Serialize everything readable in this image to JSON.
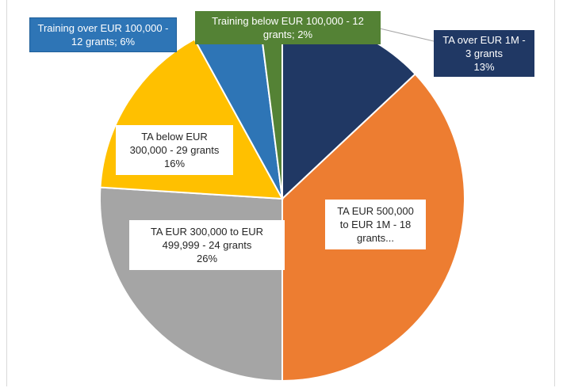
{
  "chart_data": {
    "type": "pie",
    "categories": [
      "TA over EUR 1M - 3 grants",
      "TA EUR 500,000 to EUR 1M - 18 grants...",
      "TA EUR 300,000 to EUR 499,999 - 24 grants",
      "TA below EUR 300,000 - 29 grants",
      "Training over EUR 100,000 - 12 grants;",
      "Training below EUR 100,000 - 12 grants;"
    ],
    "values": [
      13,
      37,
      26,
      16,
      6,
      2
    ],
    "value_labels": [
      "13%",
      null,
      "26%",
      "16%",
      "6%",
      "2%"
    ],
    "colors": [
      "#203864",
      "#ed7d31",
      "#a5a5a5",
      "#ffc000",
      "#2e75b6",
      "#548235"
    ]
  }
}
